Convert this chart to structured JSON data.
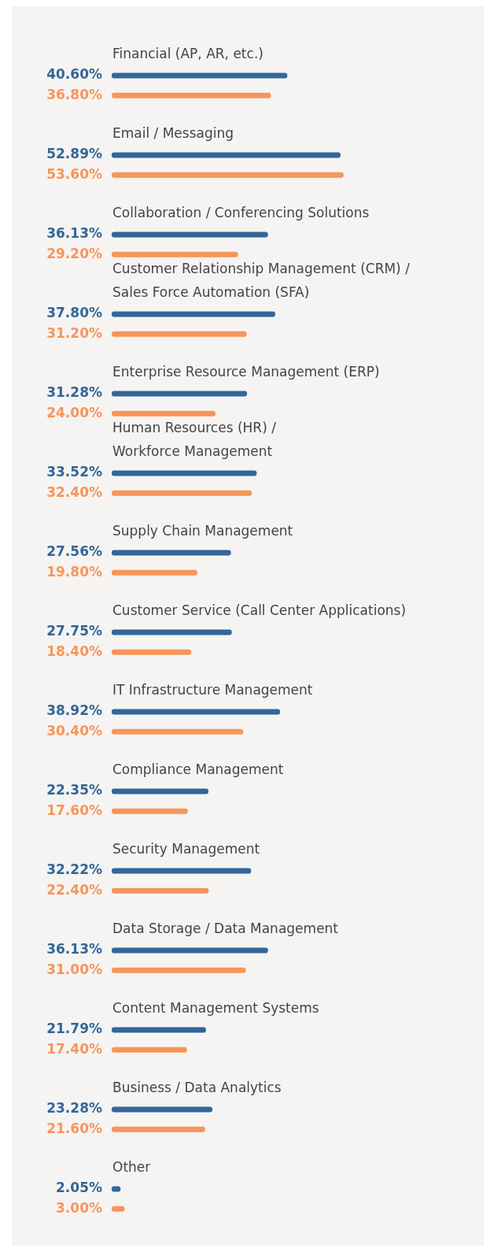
{
  "chart_data": {
    "type": "bar",
    "orientation": "horizontal",
    "categories": [
      "Financial (AP, AR, etc.)",
      "Email / Messaging",
      "Collaboration / Conferencing Solutions",
      "Customer Relationship Management (CRM) /\nSales Force Automation (SFA)",
      "Enterprise Resource Management (ERP)",
      "Human Resources (HR) /\nWorkforce Management",
      "Supply Chain Management",
      "Customer Service (Call Center Applications)",
      "IT Infrastructure Management",
      "Compliance Management",
      "Security Management",
      "Data Storage / Data Management",
      "Content Management Systems",
      "Business / Data Analytics",
      "Other"
    ],
    "series": [
      {
        "color": "#336699",
        "values": [
          40.6,
          52.89,
          36.13,
          37.8,
          31.28,
          33.52,
          27.56,
          27.75,
          38.92,
          22.35,
          32.22,
          36.13,
          21.79,
          23.28,
          2.05
        ],
        "value_labels": [
          "40.60%",
          "52.89%",
          "36.13%",
          "37.80%",
          "31.28%",
          "33.52%",
          "27.56%",
          "27.75%",
          "38.92%",
          "22.35%",
          "32.22%",
          "36.13%",
          "21.79%",
          "23.28%",
          "2.05%"
        ]
      },
      {
        "color": "#f7955a",
        "values": [
          36.8,
          53.6,
          29.2,
          31.2,
          24.0,
          32.4,
          19.8,
          18.4,
          30.4,
          17.6,
          22.4,
          31.0,
          17.4,
          21.6,
          3.0
        ],
        "value_labels": [
          "36.80%",
          "53.60%",
          "29.20%",
          "31.20%",
          "24.00%",
          "32.40%",
          "19.80%",
          "18.40%",
          "30.40%",
          "17.60%",
          "22.40%",
          "31.00%",
          "17.40%",
          "21.60%",
          "3.00%"
        ]
      }
    ],
    "legend": false
  }
}
